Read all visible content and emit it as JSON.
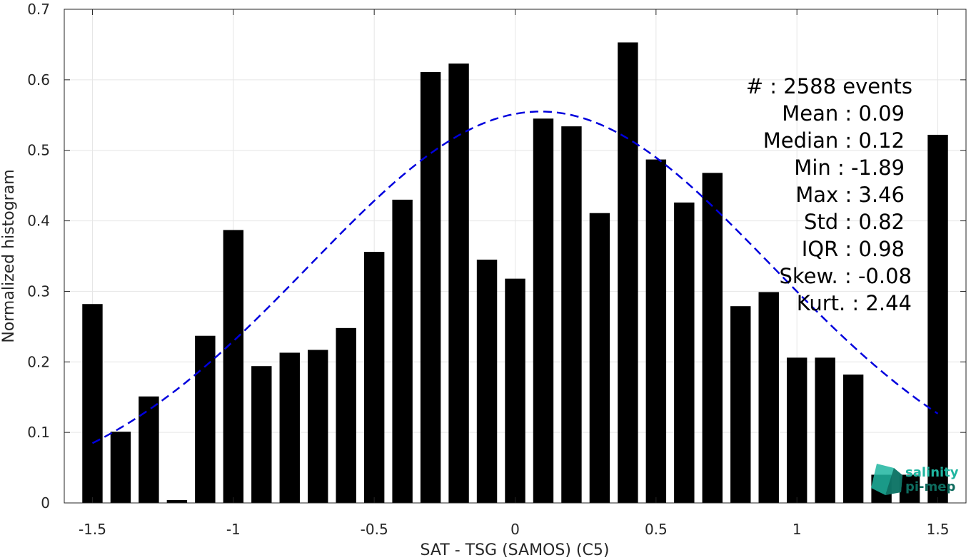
{
  "chart_data": {
    "type": "bar",
    "xlabel": "SAT - TSG (SAMOS) (C5)",
    "ylabel": "Normalized histogram",
    "xlim": [
      -1.6,
      1.6
    ],
    "ylim": [
      0,
      0.7
    ],
    "xticks": [
      -1.5,
      -1,
      -0.5,
      0,
      0.5,
      1,
      1.5
    ],
    "xtick_labels": [
      "-1.5",
      "-1",
      "-0.5",
      "0",
      "0.5",
      "1",
      "1.5"
    ],
    "yticks": [
      0,
      0.1,
      0.2,
      0.3,
      0.4,
      0.5,
      0.6,
      0.7
    ],
    "ytick_labels": [
      "0",
      "0.1",
      "0.2",
      "0.3",
      "0.4",
      "0.5",
      "0.6",
      "0.7"
    ],
    "grid": true,
    "bar_color": "#000000",
    "fit_color": "#0000dd",
    "bin_width": 0.1,
    "bars": {
      "x": [
        -1.5,
        -1.4,
        -1.3,
        -1.2,
        -1.1,
        -1.0,
        -0.9,
        -0.8,
        -0.7,
        -0.6,
        -0.5,
        -0.4,
        -0.3,
        -0.2,
        -0.1,
        0.0,
        0.1,
        0.2,
        0.3,
        0.4,
        0.5,
        0.6,
        0.7,
        0.8,
        0.9,
        1.0,
        1.1,
        1.2,
        1.3,
        1.4,
        1.5
      ],
      "values": [
        0.282,
        0.101,
        0.151,
        0.004,
        0.237,
        0.387,
        0.194,
        0.213,
        0.217,
        0.248,
        0.356,
        0.43,
        0.611,
        0.623,
        0.345,
        0.318,
        0.545,
        0.534,
        0.411,
        0.653,
        0.487,
        0.426,
        0.468,
        0.279,
        0.299,
        0.206,
        0.206,
        0.182,
        0.04,
        0.04,
        0.522
      ]
    },
    "fit": {
      "type": "gaussian",
      "mean": 0.09,
      "std": 0.82,
      "peak": 0.555,
      "x_range": [
        -1.5,
        1.5
      ]
    },
    "stats": [
      {
        "label": "#  : 2588 events"
      },
      {
        "label": "Mean : 0.09"
      },
      {
        "label": "Median : 0.12"
      },
      {
        "label": "Min : -1.89"
      },
      {
        "label": "Max : 3.46"
      },
      {
        "label": "Std : 0.82"
      },
      {
        "label": "IQR : 0.98"
      },
      {
        "label": "Skew. : -0.08"
      },
      {
        "label": "Kurt. : 2.44"
      }
    ]
  },
  "logo": {
    "line1": "salinity",
    "line2": "pi-mep",
    "color1": "#1fb5a0",
    "color2": "#0e6b5e"
  }
}
